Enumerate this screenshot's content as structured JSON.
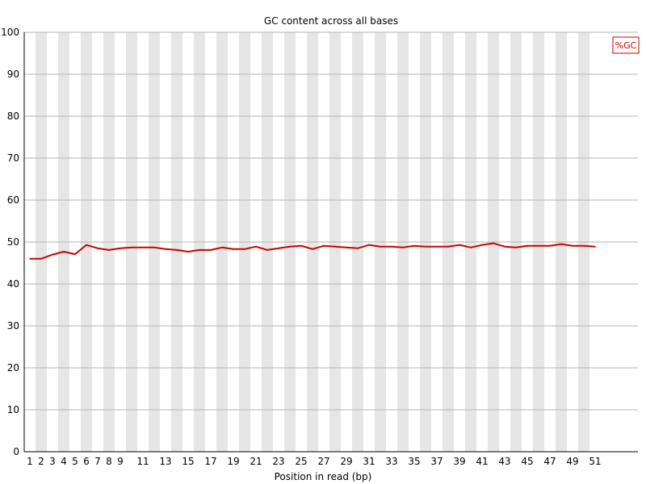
{
  "chart_data": {
    "type": "line",
    "title": "GC content across all bases",
    "xlabel": "Position in read (bp)",
    "ylabel": "",
    "ylim": [
      0,
      100
    ],
    "yticks": [
      0,
      10,
      20,
      30,
      40,
      50,
      60,
      70,
      80,
      90,
      100
    ],
    "x_tick_labels": [
      "1",
      "2",
      "3",
      "4",
      "5",
      "6",
      "7",
      "8",
      "9",
      "11",
      "13",
      "15",
      "17",
      "19",
      "21",
      "23",
      "25",
      "27",
      "29",
      "31",
      "33",
      "35",
      "37",
      "39",
      "41",
      "43",
      "45",
      "47",
      "49",
      "51"
    ],
    "x": [
      1,
      2,
      3,
      4,
      5,
      6,
      7,
      8,
      9,
      10,
      11,
      12,
      13,
      14,
      15,
      16,
      17,
      18,
      19,
      20,
      21,
      22,
      23,
      24,
      25,
      26,
      27,
      28,
      29,
      30,
      31,
      32,
      33,
      34,
      35,
      36,
      37,
      38,
      39,
      40,
      41,
      42,
      43,
      44,
      45,
      46,
      47,
      48,
      49,
      50,
      51
    ],
    "series": [
      {
        "name": "%GC",
        "color": "#cc0000",
        "values": [
          46.0,
          46.0,
          47.0,
          47.7,
          47.1,
          49.3,
          48.5,
          48.1,
          48.5,
          48.7,
          48.7,
          48.7,
          48.3,
          48.1,
          47.7,
          48.1,
          48.1,
          48.7,
          48.3,
          48.3,
          48.9,
          48.1,
          48.5,
          48.9,
          49.1,
          48.3,
          49.1,
          48.9,
          48.7,
          48.5,
          49.3,
          48.9,
          48.9,
          48.7,
          49.1,
          48.9,
          48.9,
          48.9,
          49.3,
          48.7,
          49.3,
          49.7,
          48.9,
          48.7,
          49.1,
          49.1,
          49.1,
          49.5,
          49.1,
          49.1,
          48.9
        ]
      }
    ],
    "grid": true,
    "legend_position": "top-right",
    "colors": {
      "band": "#e6e6e6",
      "grid": "#b4b4b4",
      "axis": "#000000",
      "line": "#cc0000"
    }
  }
}
